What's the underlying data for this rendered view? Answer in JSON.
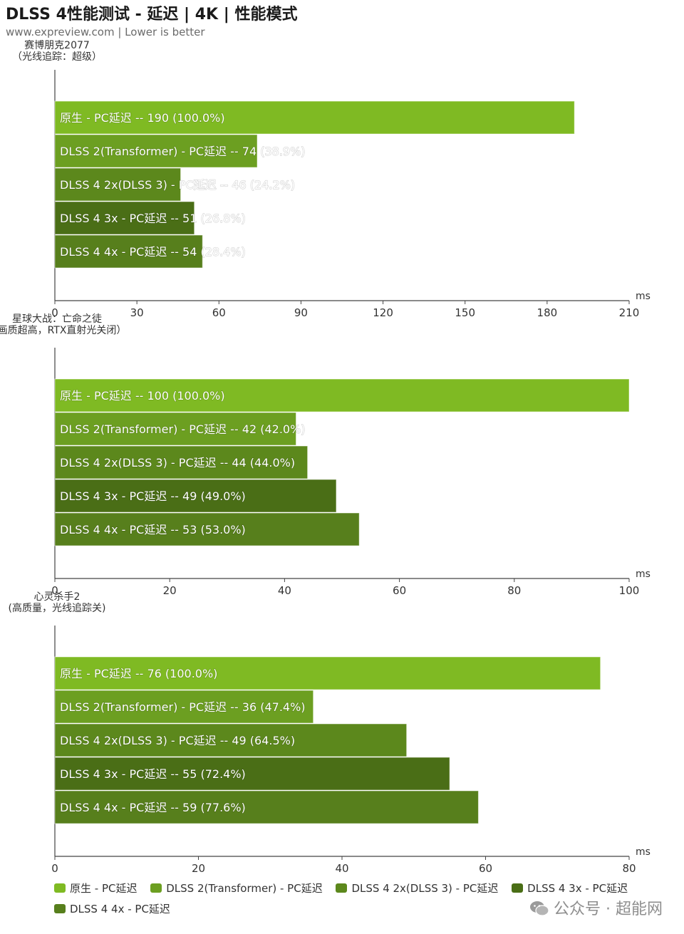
{
  "header": {
    "title": "DLSS 4性能测试 - 延迟 | 4K | 性能模式",
    "subtitle": "www.expreview.com | Lower is better"
  },
  "colors": {
    "series": [
      "#7fba23",
      "#6c9f21",
      "#5c881c",
      "#4a6e16",
      "#577f1c"
    ]
  },
  "chart_data": [
    {
      "type": "bar",
      "orientation": "horizontal",
      "category_label": [
        "赛博朋克2077",
        "（光线追踪：超级）"
      ],
      "unit": "ms",
      "xlim": [
        0,
        210
      ],
      "ticks": [
        0,
        30,
        60,
        90,
        120,
        150,
        180,
        210
      ],
      "series_names": [
        "原生 - PC延迟",
        "DLSS 2(Transformer) - PC延迟",
        "DLSS 4 2x(DLSS 3)  - PC延迟",
        "DLSS 4 3x  - PC延迟",
        "DLSS 4 4x  - PC延迟"
      ],
      "values": [
        190,
        74,
        46,
        51,
        54
      ],
      "percents": [
        "100.0%",
        "38.9%",
        "24.2%",
        "26.8%",
        "28.4%"
      ]
    },
    {
      "type": "bar",
      "orientation": "horizontal",
      "category_label": [
        "星球大战：亡命之徒",
        "（画质超高，RTX直射光关闭）"
      ],
      "unit": "ms",
      "xlim": [
        0,
        100
      ],
      "ticks": [
        0,
        20,
        40,
        60,
        80,
        100
      ],
      "series_names": [
        "原生 - PC延迟",
        "DLSS 2(Transformer) - PC延迟",
        "DLSS 4 2x(DLSS 3)  - PC延迟",
        "DLSS 4 3x  - PC延迟",
        "DLSS 4 4x  - PC延迟"
      ],
      "values": [
        100,
        42,
        44,
        49,
        53
      ],
      "percents": [
        "100.0%",
        "42.0%",
        "44.0%",
        "49.0%",
        "53.0%"
      ]
    },
    {
      "type": "bar",
      "orientation": "horizontal",
      "category_label": [
        "心灵杀手2",
        "(高质量，光线追踪关)"
      ],
      "unit": "ms",
      "xlim": [
        0,
        80
      ],
      "ticks": [
        0,
        20,
        40,
        60,
        80
      ],
      "series_names": [
        "原生 - PC延迟",
        "DLSS 2(Transformer) - PC延迟",
        "DLSS 4 2x(DLSS 3)  - PC延迟",
        "DLSS 4 3x  - PC延迟",
        "DLSS 4 4x  - PC延迟"
      ],
      "values": [
        76,
        36,
        49,
        55,
        59
      ],
      "percents": [
        "100.0%",
        "47.4%",
        "64.5%",
        "72.4%",
        "77.6%"
      ]
    }
  ],
  "legend": [
    "原生 - PC延迟",
    "DLSS 2(Transformer) - PC延迟",
    "DLSS 4 2x(DLSS 3)  - PC延迟",
    "DLSS 4 3x  - PC延迟",
    "DLSS 4 4x  - PC延迟"
  ],
  "watermark": "公众号 · 超能网"
}
